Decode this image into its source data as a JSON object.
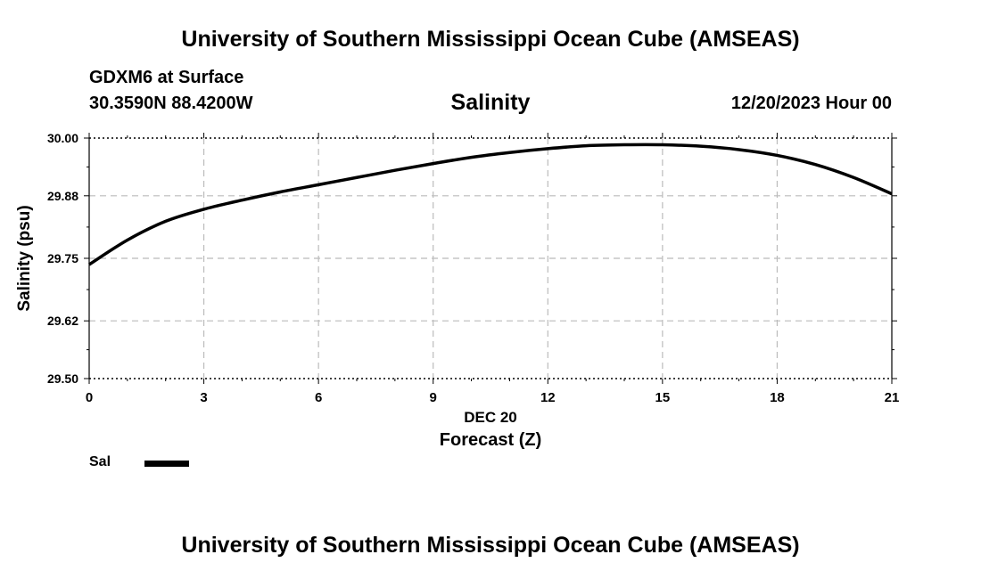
{
  "header": {
    "title": "University of Southern Mississippi Ocean Cube (AMSEAS)",
    "station": "GDXM6 at Surface",
    "coords": "30.3590N  88.4200W",
    "chart_title": "Salinity",
    "datetime": "12/20/2023 Hour 00"
  },
  "footer": {
    "title": "University of Southern Mississippi Ocean Cube (AMSEAS)"
  },
  "legend": {
    "label": "Sal",
    "color": "#000000"
  },
  "chart_data": {
    "type": "line",
    "title": "Salinity",
    "xlabel": "Forecast (Z)",
    "xlabel_date": "DEC 20",
    "ylabel": "Salinity (psu)",
    "xlim": [
      0,
      21
    ],
    "ylim": [
      29.5,
      30.0
    ],
    "xticks": [
      0,
      3,
      6,
      9,
      12,
      15,
      18,
      21
    ],
    "yticks": [
      29.5,
      29.62,
      29.75,
      29.88,
      30.0
    ],
    "ytick_labels": [
      "29.50",
      "29.62",
      "29.75",
      "29.88",
      "30.00"
    ],
    "grid": true,
    "series": [
      {
        "name": "Sal",
        "x": [
          0,
          1,
          2,
          3,
          4,
          5,
          6,
          7,
          8,
          9,
          10,
          11,
          12,
          13,
          14,
          15,
          16,
          17,
          18,
          19,
          20,
          21
        ],
        "values": [
          29.737,
          29.788,
          29.827,
          29.852,
          29.871,
          29.888,
          29.903,
          29.918,
          29.933,
          29.947,
          29.96,
          29.97,
          29.978,
          29.984,
          29.986,
          29.986,
          29.983,
          29.976,
          29.964,
          29.945,
          29.918,
          29.884
        ]
      }
    ]
  }
}
